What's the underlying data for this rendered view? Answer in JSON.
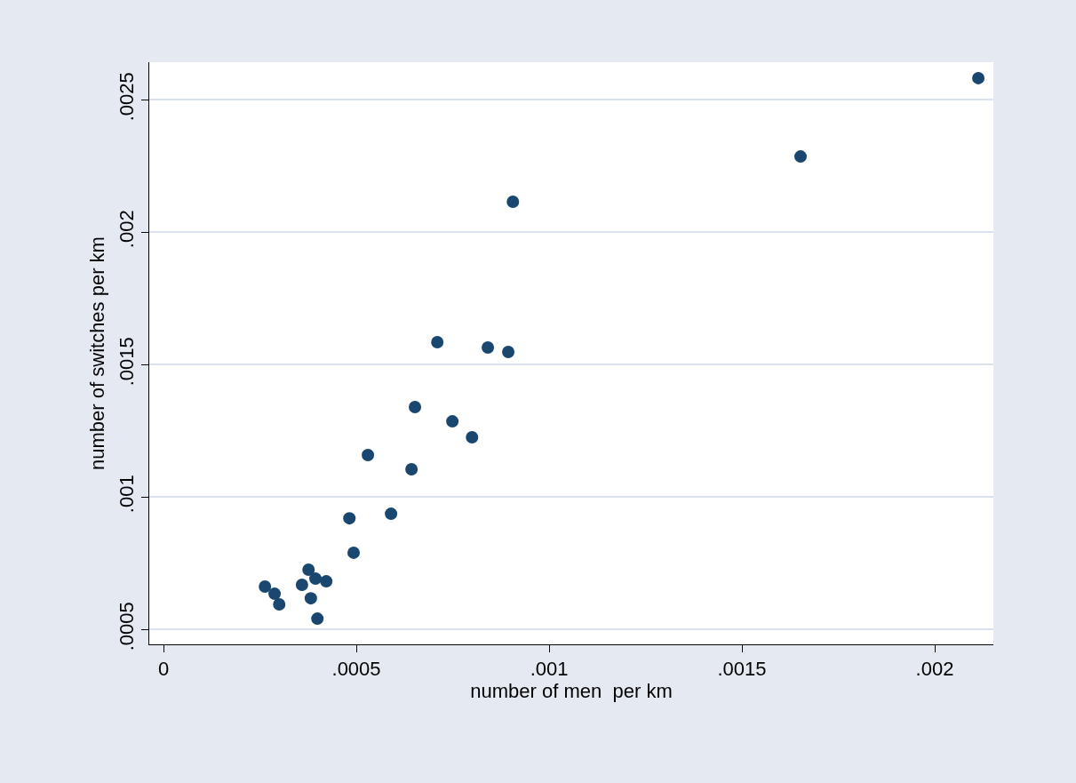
{
  "chart_data": {
    "type": "scatter",
    "xlabel": "number of men  per km",
    "ylabel": "number of switches per km",
    "x": [
      0.002113,
      0.001652,
      0.000906,
      0.00071,
      0.000841,
      0.000894,
      0.000652,
      0.000749,
      0.0008,
      0.00053,
      0.000643,
      0.000482,
      0.00059,
      0.000493,
      0.000263,
      0.000288,
      0.0003,
      0.000376,
      0.000359,
      0.000394,
      0.000422,
      0.000382,
      0.000399
    ],
    "series": [
      {
        "color": "#1a476f",
        "values": [
          0.002581,
          0.002285,
          0.002114,
          0.001584,
          0.001564,
          0.001547,
          0.001339,
          0.001285,
          0.001225,
          0.001158,
          0.001104,
          0.000919,
          0.000936,
          0.000789,
          0.000661,
          0.000634,
          0.000594,
          0.000725,
          0.000668,
          0.000691,
          0.000681,
          0.000617,
          0.00054
        ]
      }
    ],
    "xlim": [
      -3.7e-05,
      0.002152
    ],
    "ylim": [
      0.000443,
      0.002641
    ],
    "xticks": [
      0,
      {
        "value": 0.0005,
        "label": ".0005"
      },
      {
        "value": 0.001,
        "label": ".001"
      },
      {
        "value": 0.0015,
        "label": ".0015"
      },
      {
        "value": 0.002,
        "label": ".002"
      }
    ],
    "yticks": [
      {
        "value": 0.0005,
        "label": ".0005"
      },
      {
        "value": 0.001,
        "label": ".001"
      },
      {
        "value": 0.0015,
        "label": ".0015"
      },
      {
        "value": 0.002,
        "label": ".002"
      },
      {
        "value": 0.0025,
        "label": ".0025"
      }
    ],
    "grid": "y",
    "marker": "circle"
  }
}
